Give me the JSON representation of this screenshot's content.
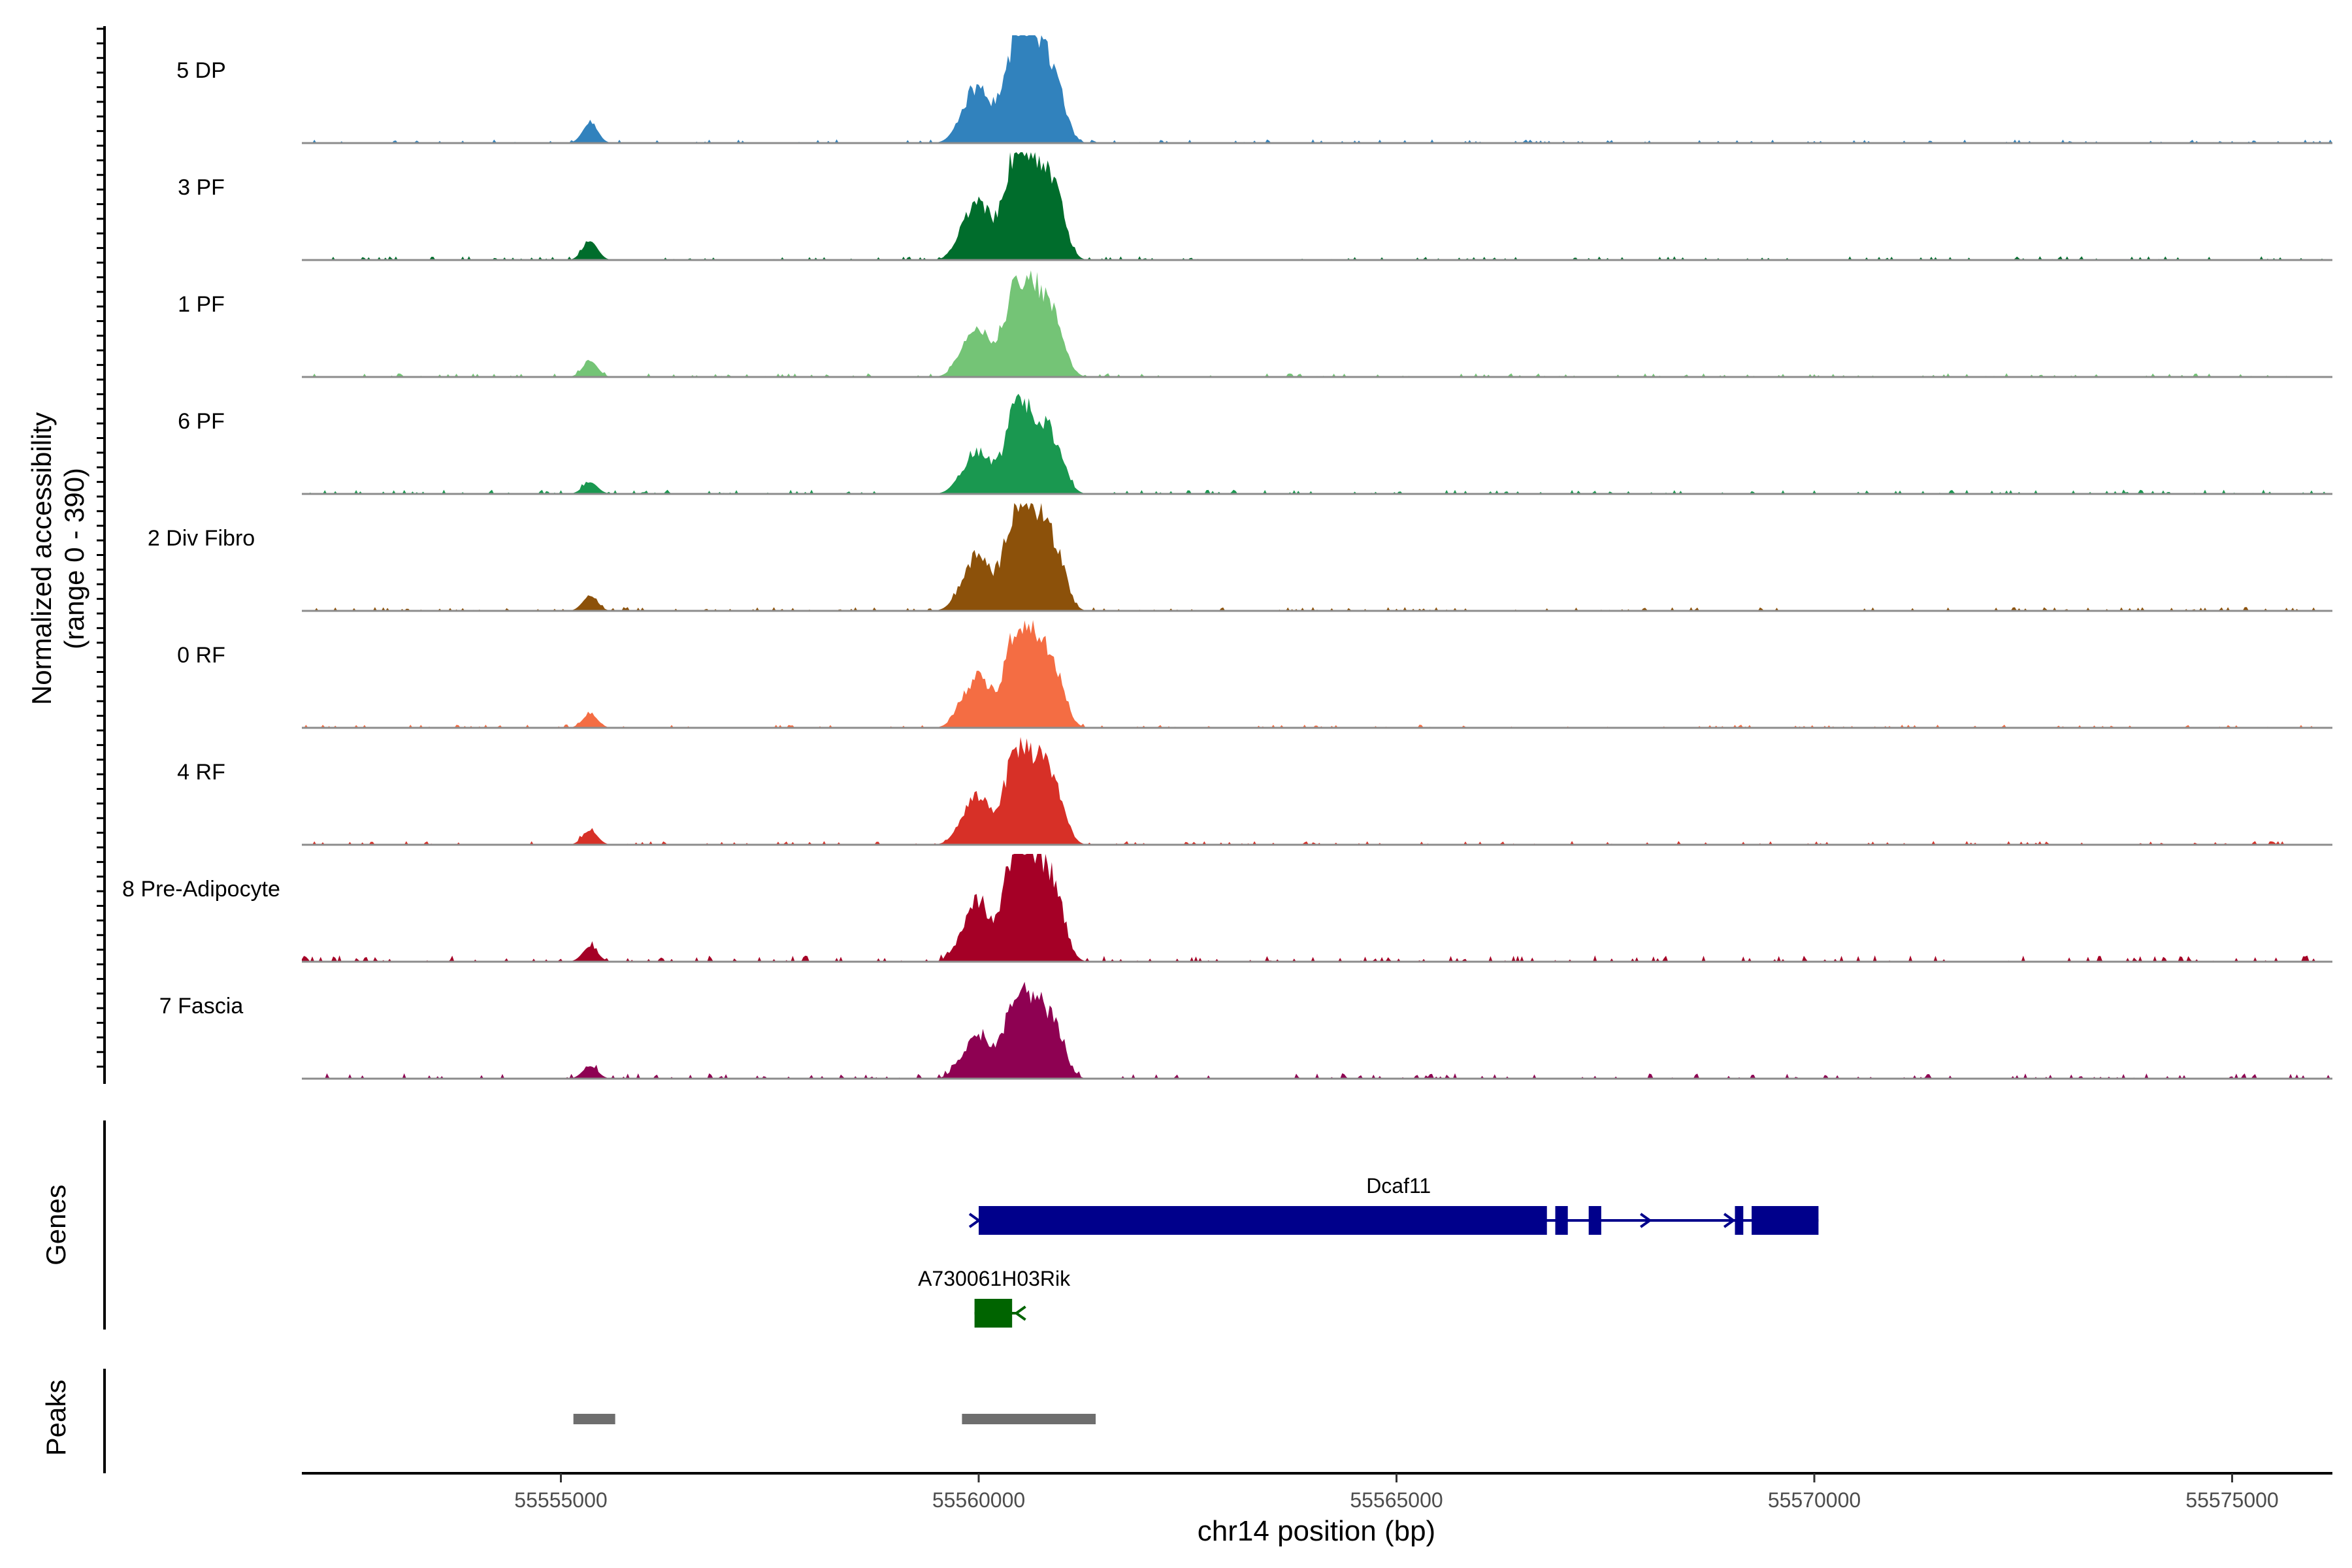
{
  "chart_data": {
    "type": "area",
    "title": "",
    "ylabel_line1": "Normalized accessibility",
    "ylabel_line2": "(range 0 - 390)",
    "y_range": [
      0,
      390
    ],
    "xlabel": "chr14 position (bp)",
    "x_range": [
      55551900,
      55576200
    ],
    "x_ticks": [
      55555000,
      55560000,
      55565000,
      55570000,
      55575000
    ],
    "x_tick_labels": [
      "55555000",
      "55560000",
      "55565000",
      "55570000",
      "55575000"
    ],
    "tracks": [
      {
        "name": "5 DP",
        "color": "#3182bd",
        "scale": 0.93,
        "noise": 0.035,
        "small": 0.2
      },
      {
        "name": "3 PF",
        "color": "#006d2c",
        "scale": 0.97,
        "noise": 0.035,
        "small": 0.18
      },
      {
        "name": "1 PF",
        "color": "#74c476",
        "scale": 0.82,
        "noise": 0.035,
        "small": 0.18
      },
      {
        "name": "6 PF",
        "color": "#1a9850",
        "scale": 0.72,
        "noise": 0.04,
        "small": 0.15
      },
      {
        "name": "2 Div Fibro",
        "color": "#8c510a",
        "scale": 0.92,
        "noise": 0.035,
        "small": 0.15
      },
      {
        "name": "0 RF",
        "color": "#f46d43",
        "scale": 0.85,
        "noise": 0.03,
        "small": 0.15
      },
      {
        "name": "4 RF",
        "color": "#d73027",
        "scale": 0.82,
        "noise": 0.035,
        "small": 0.16
      },
      {
        "name": "8 Pre-Adipocyte",
        "color": "#a50026",
        "scale": 1.0,
        "noise": 0.06,
        "small": 0.14
      },
      {
        "name": "7 Fascia",
        "color": "#8e0152",
        "scale": 0.72,
        "noise": 0.05,
        "small": 0.16
      }
    ],
    "peak_shape": [
      {
        "center": 55555350,
        "width": 90,
        "height": 0.12
      },
      {
        "center": 55559800,
        "width": 120,
        "height": 0.1
      },
      {
        "center": 55560000,
        "width": 150,
        "height": 0.55
      },
      {
        "center": 55560420,
        "width": 130,
        "height": 0.85
      },
      {
        "center": 55560620,
        "width": 140,
        "height": 0.62
      },
      {
        "center": 55560820,
        "width": 140,
        "height": 0.66
      },
      {
        "center": 55560990,
        "width": 100,
        "height": 0.2
      }
    ],
    "genes_label": "Genes",
    "genes": [
      {
        "name": "Dcaf11",
        "color": "#00008b",
        "start": 55560000,
        "end": 55570050,
        "exons": [
          [
            55560000,
            55566800
          ],
          [
            55566900,
            55567050
          ],
          [
            55567300,
            55567450
          ],
          [
            55569050,
            55569150
          ],
          [
            55569250,
            55570050
          ]
        ],
        "arrows": [
          55568000,
          55569000
        ]
      },
      {
        "name": "A730061H03Rik",
        "color": "#006400",
        "start": 55559950,
        "end": 55560450,
        "exons": [
          [
            55559950,
            55560400
          ]
        ],
        "arrows": []
      }
    ],
    "peaks_label": "Peaks",
    "peak_color": "#6e6e6e",
    "peaks": [
      [
        55555150,
        55555650
      ],
      [
        55559800,
        55561400
      ]
    ]
  }
}
